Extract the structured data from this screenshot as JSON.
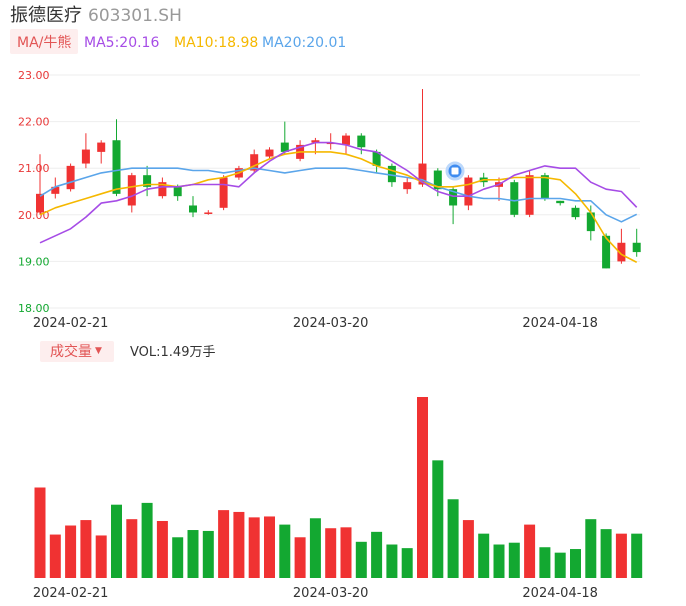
{
  "header": {
    "stock_name": "振德医疗",
    "stock_code": "603301.SH"
  },
  "legend": {
    "indicator_label": "MA/牛熊",
    "ma5_label": "MA5:20.16",
    "ma10_label": "MA10:18.98",
    "ma20_label": "MA20:20.01",
    "ma5_color": "#a64ce6",
    "ma10_color": "#f5b800",
    "ma20_color": "#5aa5ea"
  },
  "volume_header": {
    "selector_label": "成交量",
    "selector_arrow": "▼",
    "vol_label": "VOL:1.49万手"
  },
  "colors": {
    "up": "#f03232",
    "down": "#13a831",
    "axis_up": "#e83838",
    "axis_down": "#13a831",
    "grid": "#eeeeee",
    "legend_bg": "#fdeeee",
    "legend_accent": "#e25555"
  },
  "chart_data": {
    "type": "candlestick",
    "y_ticks": [
      "23.00",
      "22.00",
      "21.00",
      "20.00",
      "19.00",
      "18.00"
    ],
    "ylim": [
      18,
      23
    ],
    "x_tick_labels": [
      {
        "index": 2,
        "label": "2024-02-21"
      },
      {
        "index": 19,
        "label": "2024-03-20"
      },
      {
        "index": 34,
        "label": "2024-04-18"
      }
    ],
    "grid": true,
    "candles": [
      {
        "o": 20.05,
        "c": 20.45,
        "h": 21.3,
        "l": 20.0
      },
      {
        "o": 20.45,
        "c": 20.6,
        "h": 20.8,
        "l": 20.35
      },
      {
        "o": 20.55,
        "c": 21.05,
        "h": 21.1,
        "l": 20.5
      },
      {
        "o": 21.1,
        "c": 21.4,
        "h": 21.75,
        "l": 21.0
      },
      {
        "o": 21.35,
        "c": 21.55,
        "h": 21.6,
        "l": 21.1
      },
      {
        "o": 21.6,
        "c": 20.45,
        "h": 22.05,
        "l": 20.4
      },
      {
        "o": 20.2,
        "c": 20.85,
        "h": 20.9,
        "l": 20.05
      },
      {
        "o": 20.85,
        "c": 20.6,
        "h": 21.05,
        "l": 20.4
      },
      {
        "o": 20.4,
        "c": 20.7,
        "h": 20.8,
        "l": 20.35
      },
      {
        "o": 20.6,
        "c": 20.4,
        "h": 20.65,
        "l": 20.3
      },
      {
        "o": 20.2,
        "c": 20.05,
        "h": 20.4,
        "l": 19.95
      },
      {
        "o": 20.05,
        "c": 20.05,
        "h": 20.1,
        "l": 20.0
      },
      {
        "o": 20.15,
        "c": 20.8,
        "h": 20.85,
        "l": 20.1
      },
      {
        "o": 20.8,
        "c": 21.0,
        "h": 21.05,
        "l": 20.75
      },
      {
        "o": 20.95,
        "c": 21.3,
        "h": 21.4,
        "l": 20.9
      },
      {
        "o": 21.25,
        "c": 21.4,
        "h": 21.45,
        "l": 21.2
      },
      {
        "o": 21.55,
        "c": 21.35,
        "h": 22.0,
        "l": 21.3
      },
      {
        "o": 21.2,
        "c": 21.5,
        "h": 21.6,
        "l": 21.15
      },
      {
        "o": 21.55,
        "c": 21.6,
        "h": 21.65,
        "l": 21.3
      },
      {
        "o": 21.55,
        "c": 21.55,
        "h": 21.75,
        "l": 21.4
      },
      {
        "o": 21.5,
        "c": 21.7,
        "h": 21.75,
        "l": 21.3
      },
      {
        "o": 21.7,
        "c": 21.45,
        "h": 21.75,
        "l": 21.3
      },
      {
        "o": 21.35,
        "c": 21.05,
        "h": 21.4,
        "l": 20.9
      },
      {
        "o": 21.05,
        "c": 20.7,
        "h": 21.1,
        "l": 20.6
      },
      {
        "o": 20.55,
        "c": 20.7,
        "h": 20.8,
        "l": 20.45
      },
      {
        "o": 20.65,
        "c": 21.1,
        "h": 22.7,
        "l": 20.6
      },
      {
        "o": 20.95,
        "c": 20.55,
        "h": 21.0,
        "l": 20.4
      },
      {
        "o": 20.55,
        "c": 20.2,
        "h": 20.6,
        "l": 19.8
      },
      {
        "o": 20.2,
        "c": 20.8,
        "h": 20.85,
        "l": 20.1
      },
      {
        "o": 20.8,
        "c": 20.7,
        "h": 20.9,
        "l": 20.6
      },
      {
        "o": 20.6,
        "c": 20.7,
        "h": 20.8,
        "l": 20.3
      },
      {
        "o": 20.7,
        "c": 20.0,
        "h": 20.75,
        "l": 19.95
      },
      {
        "o": 20.0,
        "c": 20.85,
        "h": 20.95,
        "l": 19.95
      },
      {
        "o": 20.85,
        "c": 20.35,
        "h": 20.9,
        "l": 20.3
      },
      {
        "o": 20.3,
        "c": 20.25,
        "h": 20.3,
        "l": 20.2
      },
      {
        "o": 20.15,
        "c": 19.95,
        "h": 20.2,
        "l": 19.9
      },
      {
        "o": 20.05,
        "c": 19.65,
        "h": 20.2,
        "l": 19.45
      },
      {
        "o": 19.55,
        "c": 18.85,
        "h": 19.6,
        "l": 18.85
      },
      {
        "o": 19.0,
        "c": 19.4,
        "h": 19.7,
        "l": 18.95
      },
      {
        "o": 19.4,
        "c": 19.2,
        "h": 19.7,
        "l": 19.1
      }
    ],
    "ma5": [
      19.4,
      19.55,
      19.7,
      19.95,
      20.25,
      20.3,
      20.4,
      20.55,
      20.6,
      20.6,
      20.65,
      20.65,
      20.65,
      20.6,
      20.9,
      21.15,
      21.35,
      21.45,
      21.55,
      21.55,
      21.5,
      21.4,
      21.35,
      21.15,
      20.95,
      20.7,
      20.5,
      20.4,
      20.4,
      20.55,
      20.65,
      20.85,
      20.95,
      21.05,
      21.0,
      21.0,
      20.7,
      20.55,
      20.5,
      20.16
    ],
    "ma10": [
      20.0,
      20.15,
      20.25,
      20.35,
      20.45,
      20.55,
      20.6,
      20.65,
      20.65,
      20.6,
      20.65,
      20.75,
      20.8,
      20.9,
      21.05,
      21.2,
      21.3,
      21.35,
      21.35,
      21.35,
      21.3,
      21.2,
      21.05,
      20.95,
      20.85,
      20.7,
      20.6,
      20.6,
      20.65,
      20.75,
      20.75,
      20.8,
      20.8,
      20.8,
      20.75,
      20.45,
      20.05,
      19.5,
      19.15,
      18.98
    ],
    "ma20": [
      20.4,
      20.6,
      20.7,
      20.8,
      20.9,
      20.95,
      21.0,
      21.0,
      21.0,
      21.0,
      20.95,
      20.95,
      20.9,
      20.95,
      21.0,
      20.95,
      20.9,
      20.95,
      21.0,
      21.0,
      21.0,
      20.95,
      20.9,
      20.85,
      20.8,
      20.75,
      20.6,
      20.5,
      20.4,
      20.35,
      20.35,
      20.3,
      20.35,
      20.35,
      20.35,
      20.3,
      20.3,
      20.0,
      19.85,
      20.01
    ],
    "volume": [
      1.0,
      0.48,
      0.58,
      0.64,
      0.47,
      0.81,
      0.65,
      0.83,
      0.63,
      0.45,
      0.53,
      0.52,
      0.75,
      0.73,
      0.67,
      0.68,
      0.59,
      0.45,
      0.66,
      0.55,
      0.56,
      0.4,
      0.51,
      0.37,
      0.33,
      2.0,
      1.3,
      0.87,
      0.64,
      0.49,
      0.37,
      0.39,
      0.59,
      0.34,
      0.28,
      0.32,
      0.65,
      0.54,
      0.49,
      0.49
    ],
    "volume_colors_up": [
      true,
      true,
      true,
      true,
      true,
      false,
      true,
      false,
      true,
      false,
      false,
      false,
      true,
      true,
      true,
      true,
      false,
      true,
      false,
      true,
      true,
      false,
      false,
      false,
      false,
      true,
      false,
      false,
      true,
      false,
      false,
      false,
      true,
      false,
      false,
      false,
      false,
      false,
      true,
      false
    ]
  }
}
